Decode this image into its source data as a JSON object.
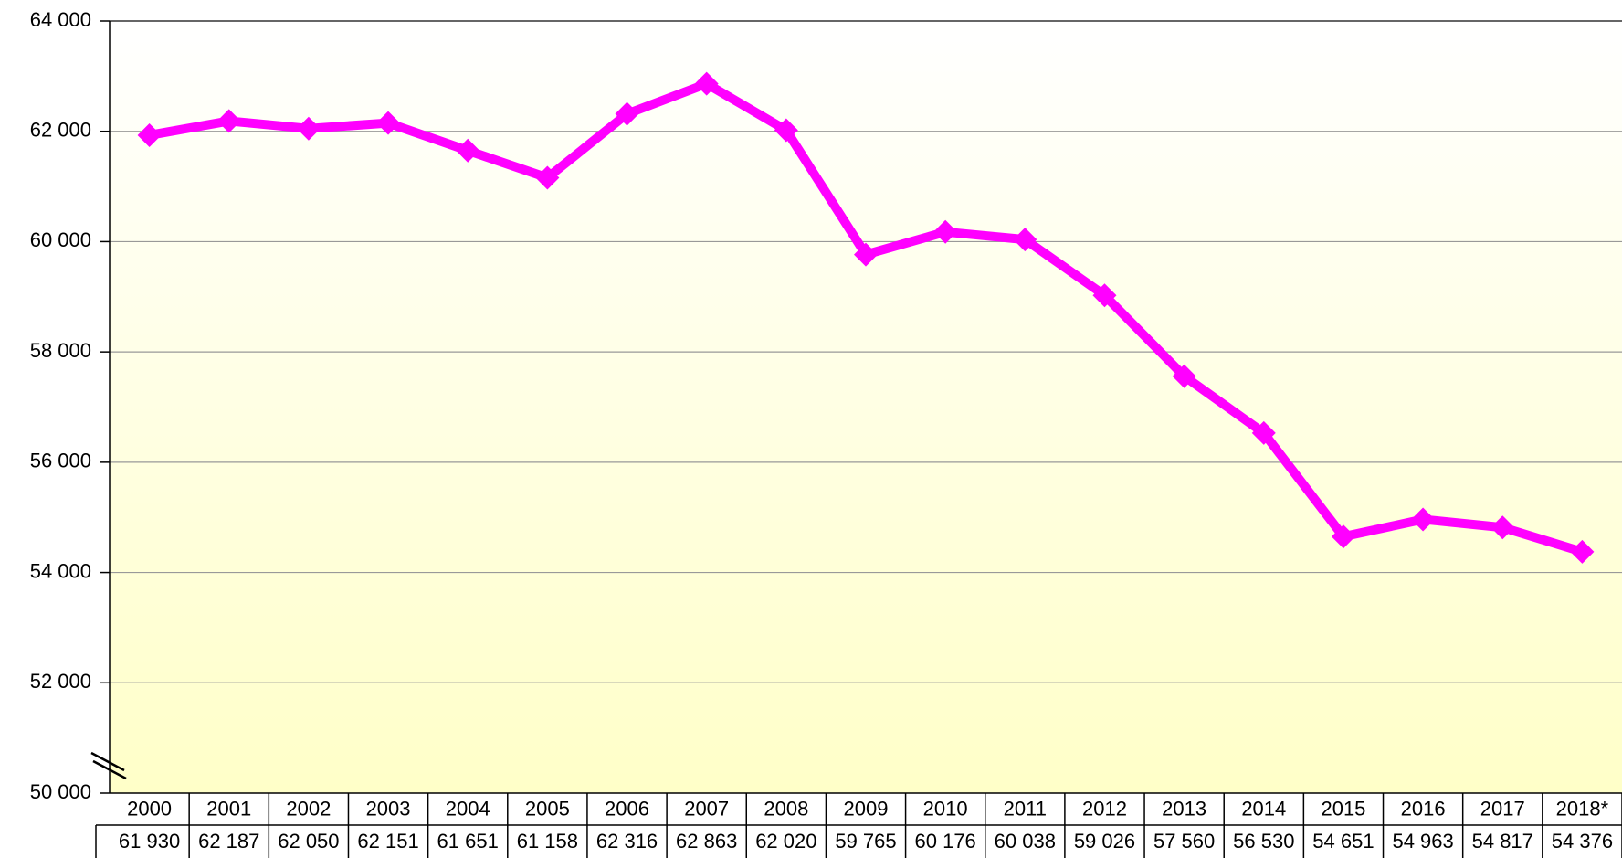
{
  "chart_data": {
    "type": "line",
    "categories": [
      "2000",
      "2001",
      "2002",
      "2003",
      "2004",
      "2005",
      "2006",
      "2007",
      "2008",
      "2009",
      "2010",
      "2011",
      "2012",
      "2013",
      "2014",
      "2015",
      "2016",
      "2017",
      "2018*"
    ],
    "values": [
      61930,
      62187,
      62050,
      62151,
      61651,
      61158,
      62316,
      62863,
      62020,
      59765,
      60176,
      60038,
      59026,
      57560,
      56530,
      54651,
      54963,
      54817,
      54376
    ],
    "value_labels": [
      "61 930",
      "62 187",
      "62 050",
      "62 151",
      "61 651",
      "61 158",
      "62 316",
      "62 863",
      "62 020",
      "59 765",
      "60 176",
      "60 038",
      "59 026",
      "57 560",
      "56 530",
      "54 651",
      "54 963",
      "54 817",
      "54 376"
    ],
    "color": "#ff00ff",
    "ylim": [
      50000,
      64000
    ],
    "yticks": [
      {
        "value": 50000,
        "label": "50 000"
      },
      {
        "value": 52000,
        "label": "52 000"
      },
      {
        "value": 54000,
        "label": "54 000"
      },
      {
        "value": 56000,
        "label": "56 000"
      },
      {
        "value": 58000,
        "label": "58 000"
      },
      {
        "value": 60000,
        "label": "60 000"
      },
      {
        "value": 62000,
        "label": "62 000"
      },
      {
        "value": 64000,
        "label": "64 000"
      }
    ],
    "grid": true
  }
}
